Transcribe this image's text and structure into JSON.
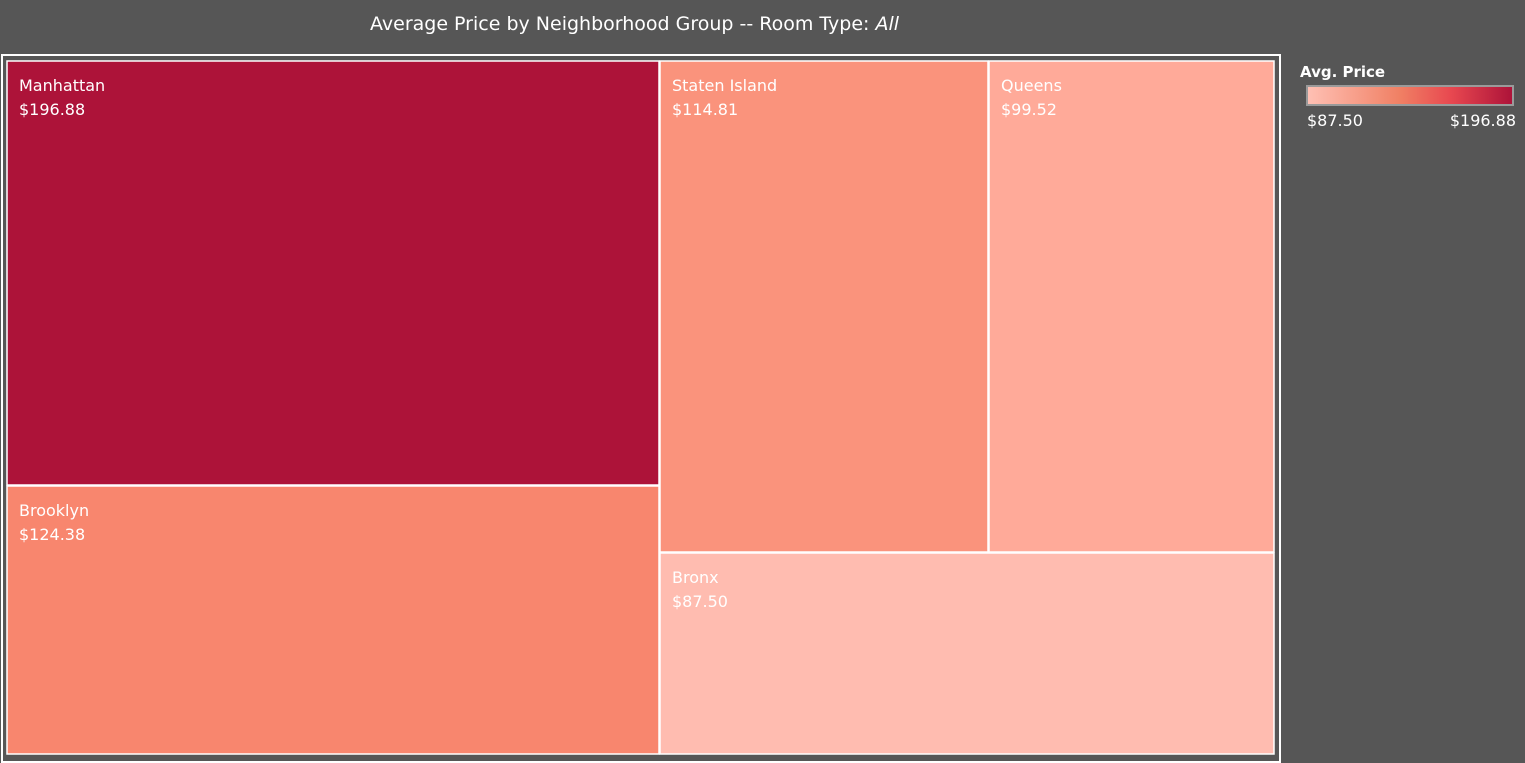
{
  "title": {
    "main": "Average Price by Neighborhood Group -- Room Type: ",
    "filter_value": "All"
  },
  "legend": {
    "title": "Avg. Price",
    "min_label": "$87.50",
    "max_label": "$196.88",
    "color_low": "#ffc0b4",
    "color_mid": "#f08064",
    "color_high": "#ad1339"
  },
  "chart_data": {
    "type": "treemap",
    "title": "Average Price by Neighborhood Group -- Room Type: All",
    "measure": "Avg. Price",
    "color_range": [
      87.5,
      196.88
    ],
    "items": [
      {
        "name": "Manhattan",
        "value": 196.88,
        "label": "$196.88",
        "color": "#ad1339"
      },
      {
        "name": "Brooklyn",
        "value": 124.38,
        "label": "$124.38",
        "color": "#f8866e"
      },
      {
        "name": "Staten Island",
        "value": 114.81,
        "label": "$114.81",
        "color": "#fa937c"
      },
      {
        "name": "Queens",
        "value": 99.52,
        "label": "$99.52",
        "color": "#ffaa99"
      },
      {
        "name": "Bronx",
        "value": 87.5,
        "label": "$87.50",
        "color": "#ffbcb0"
      }
    ]
  }
}
